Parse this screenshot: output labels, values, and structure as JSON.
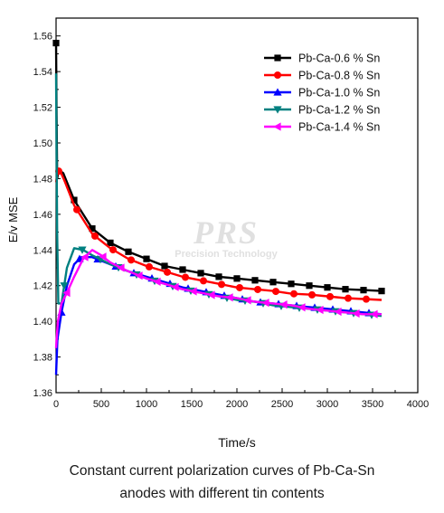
{
  "chart_data": {
    "type": "line",
    "xlabel": "Time/s",
    "ylabel": "E/v MSE",
    "xlim": [
      0,
      4000
    ],
    "ylim": [
      1.36,
      1.57
    ],
    "xticks": [
      0,
      500,
      1000,
      1500,
      2000,
      2500,
      3000,
      3500,
      4000
    ],
    "yticks": [
      1.36,
      1.38,
      1.4,
      1.42,
      1.44,
      1.46,
      1.48,
      1.5,
      1.52,
      1.54,
      1.56
    ],
    "xtick_labels": [
      "0",
      "500",
      "1000",
      "1500",
      "2000",
      "2500",
      "3000",
      "3500",
      "4000"
    ],
    "ytick_labels": [
      "1.36",
      "1.38",
      "1.40",
      "1.42",
      "1.44",
      "1.46",
      "1.48",
      "1.50",
      "1.52",
      "1.54",
      "1.56"
    ],
    "grid": false,
    "legend_position": "top-right",
    "series": [
      {
        "name": "Pb-Ca-0.6 % Sn",
        "color": "#000000",
        "marker": "square",
        "points": [
          [
            0,
            1.556
          ],
          [
            5,
            1.52
          ],
          [
            12,
            1.48
          ],
          [
            30,
            1.485
          ],
          [
            80,
            1.483
          ],
          [
            200,
            1.468
          ],
          [
            400,
            1.452
          ],
          [
            600,
            1.444
          ],
          [
            800,
            1.439
          ],
          [
            1000,
            1.435
          ],
          [
            1200,
            1.431
          ],
          [
            1400,
            1.429
          ],
          [
            1600,
            1.427
          ],
          [
            1800,
            1.425
          ],
          [
            2000,
            1.424
          ],
          [
            2200,
            1.423
          ],
          [
            2400,
            1.422
          ],
          [
            2600,
            1.421
          ],
          [
            2800,
            1.42
          ],
          [
            3000,
            1.419
          ],
          [
            3200,
            1.418
          ],
          [
            3400,
            1.4175
          ],
          [
            3600,
            1.417
          ]
        ]
      },
      {
        "name": "Pb-Ca-0.8 % Sn",
        "color": "#ff0000",
        "marker": "circle",
        "points": [
          [
            0,
            1.478
          ],
          [
            15,
            1.483
          ],
          [
            40,
            1.485
          ],
          [
            100,
            1.478
          ],
          [
            200,
            1.465
          ],
          [
            400,
            1.449
          ],
          [
            600,
            1.441
          ],
          [
            800,
            1.435
          ],
          [
            1000,
            1.431
          ],
          [
            1200,
            1.428
          ],
          [
            1400,
            1.425
          ],
          [
            1600,
            1.423
          ],
          [
            1800,
            1.421
          ],
          [
            2000,
            1.419
          ],
          [
            2200,
            1.418
          ],
          [
            2400,
            1.417
          ],
          [
            2600,
            1.4155
          ],
          [
            2800,
            1.415
          ],
          [
            3000,
            1.414
          ],
          [
            3200,
            1.413
          ],
          [
            3400,
            1.4125
          ],
          [
            3600,
            1.412
          ]
        ]
      },
      {
        "name": "Pb-Ca-1.0 % Sn",
        "color": "#0000ff",
        "marker": "triangle-up",
        "points": [
          [
            0,
            1.37
          ],
          [
            15,
            1.39
          ],
          [
            60,
            1.405
          ],
          [
            120,
            1.42
          ],
          [
            200,
            1.432
          ],
          [
            280,
            1.436
          ],
          [
            400,
            1.436
          ],
          [
            600,
            1.432
          ],
          [
            800,
            1.428
          ],
          [
            1000,
            1.425
          ],
          [
            1200,
            1.422
          ],
          [
            1400,
            1.419
          ],
          [
            1600,
            1.417
          ],
          [
            1800,
            1.415
          ],
          [
            2000,
            1.413
          ],
          [
            2200,
            1.411
          ],
          [
            2400,
            1.41
          ],
          [
            2600,
            1.409
          ],
          [
            2800,
            1.408
          ],
          [
            3000,
            1.407
          ],
          [
            3200,
            1.406
          ],
          [
            3400,
            1.405
          ],
          [
            3600,
            1.404
          ]
        ]
      },
      {
        "name": "Pb-Ca-1.2 % Sn",
        "color": "#008080",
        "marker": "triangle-down",
        "points": [
          [
            0,
            1.539
          ],
          [
            5,
            1.5
          ],
          [
            12,
            1.45
          ],
          [
            25,
            1.41
          ],
          [
            60,
            1.41
          ],
          [
            120,
            1.43
          ],
          [
            200,
            1.441
          ],
          [
            300,
            1.44
          ],
          [
            400,
            1.437
          ],
          [
            600,
            1.432
          ],
          [
            800,
            1.428
          ],
          [
            1000,
            1.424
          ],
          [
            1200,
            1.421
          ],
          [
            1400,
            1.418
          ],
          [
            1600,
            1.416
          ],
          [
            1800,
            1.414
          ],
          [
            2000,
            1.412
          ],
          [
            2200,
            1.411
          ],
          [
            2400,
            1.409
          ],
          [
            2600,
            1.408
          ],
          [
            2800,
            1.407
          ],
          [
            3000,
            1.406
          ],
          [
            3200,
            1.405
          ],
          [
            3400,
            1.404
          ],
          [
            3600,
            1.403
          ]
        ]
      },
      {
        "name": "Pb-Ca-1.4 % Sn",
        "color": "#ff00ff",
        "marker": "triangle-left",
        "points": [
          [
            0,
            1.385
          ],
          [
            20,
            1.4
          ],
          [
            60,
            1.41
          ],
          [
            120,
            1.416
          ],
          [
            200,
            1.425
          ],
          [
            300,
            1.435
          ],
          [
            400,
            1.44
          ],
          [
            500,
            1.437
          ],
          [
            600,
            1.433
          ],
          [
            800,
            1.428
          ],
          [
            1000,
            1.424
          ],
          [
            1200,
            1.421
          ],
          [
            1400,
            1.418
          ],
          [
            1600,
            1.416
          ],
          [
            1800,
            1.414
          ],
          [
            2000,
            1.413
          ],
          [
            2200,
            1.411
          ],
          [
            2400,
            1.41
          ],
          [
            2600,
            1.409
          ],
          [
            2800,
            1.407
          ],
          [
            3000,
            1.406
          ],
          [
            3200,
            1.405
          ],
          [
            3400,
            1.404
          ],
          [
            3600,
            1.404
          ]
        ]
      }
    ]
  },
  "watermark": {
    "big": "PRS",
    "small": "Precision Technology"
  },
  "caption": {
    "line1": "Constant current polarization curves of Pb-Ca-Sn",
    "line2": "anodes with different tin contents"
  }
}
